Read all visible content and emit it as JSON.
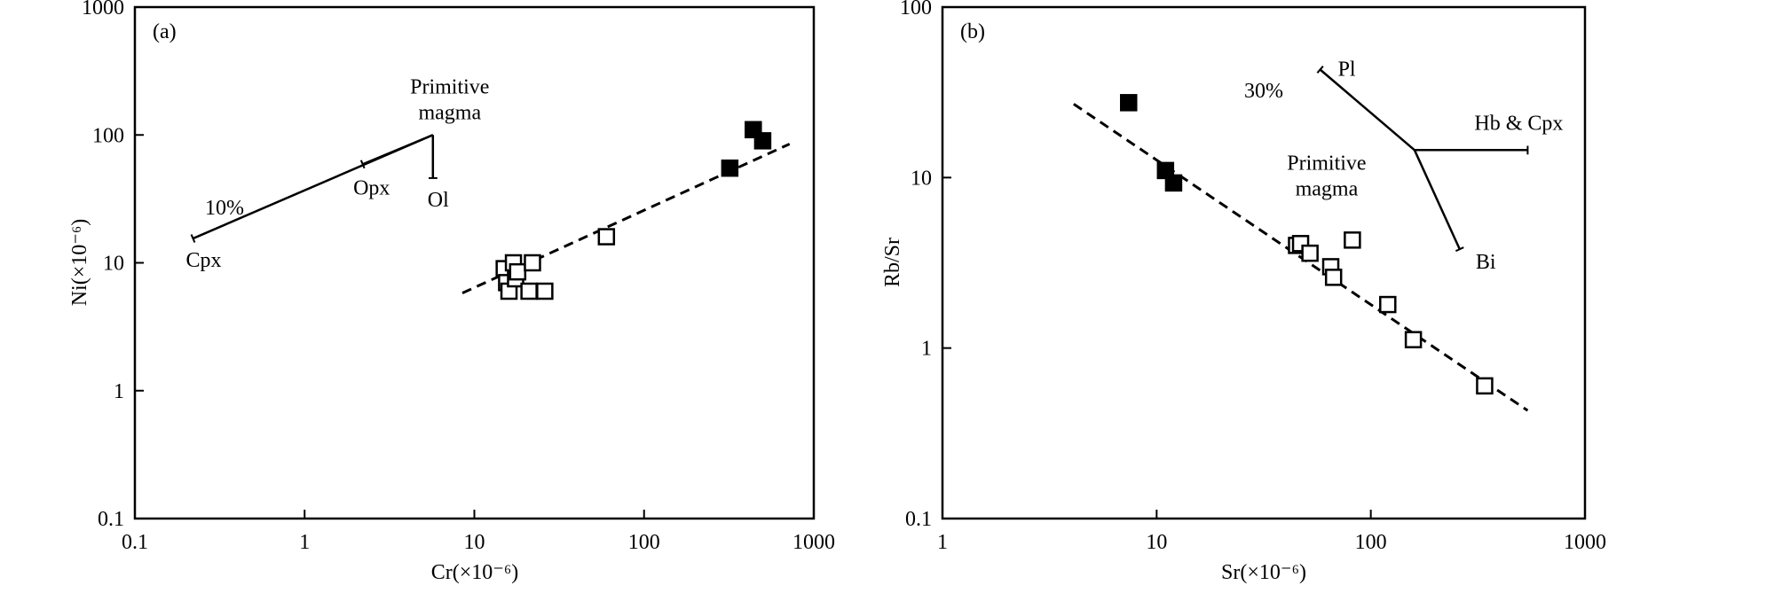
{
  "chart_data": [
    {
      "panel_label": "(a)",
      "type": "scatter",
      "xlabel": "Cr(×10⁻⁶)",
      "ylabel": "Ni(×10⁻⁶)",
      "x_scale": "log",
      "y_scale": "log",
      "xlim": [
        0.1,
        1000
      ],
      "ylim": [
        0.1,
        1000
      ],
      "x_tick_labels": [
        "0.1",
        "1",
        "10",
        "100",
        "1000"
      ],
      "y_tick_labels": [
        "0.1",
        "1",
        "10",
        "100",
        "1000"
      ],
      "series": [
        {
          "marker": "filled-square",
          "x": [
            320,
            440,
            500
          ],
          "y": [
            55,
            110,
            90
          ]
        },
        {
          "marker": "open-square",
          "x": [
            15,
            15.5,
            16,
            17,
            17.5,
            18,
            21,
            22,
            26,
            60
          ],
          "y": [
            9,
            7,
            6,
            10,
            7.5,
            8.5,
            6,
            10,
            6,
            16
          ]
        }
      ],
      "trend_line": {
        "style": "dashed",
        "x": [
          8.5,
          720
        ],
        "y": [
          5.8,
          85
        ]
      },
      "vectors": {
        "origin": {
          "x": 5.7,
          "y": 100
        },
        "origin_label": [
          "Primitive",
          "magma"
        ],
        "arrows": [
          {
            "label": "Cpx",
            "x": 0.22,
            "y": 15.5
          },
          {
            "label": "Opx",
            "x": 2.2,
            "y": 59
          },
          {
            "label": "Ol",
            "x": 5.7,
            "y": 46
          }
        ],
        "percent_label": "10%"
      }
    },
    {
      "panel_label": "(b)",
      "type": "scatter",
      "xlabel": "Sr(×10⁻⁶)",
      "ylabel": "Rb/Sr",
      "x_scale": "log",
      "y_scale": "log",
      "xlim": [
        1,
        1000
      ],
      "ylim": [
        0.1,
        100
      ],
      "x_tick_labels": [
        "1",
        "10",
        "100",
        "1000"
      ],
      "y_tick_labels": [
        "0.1",
        "1",
        "10",
        "100"
      ],
      "series": [
        {
          "marker": "filled-square",
          "x": [
            7.4,
            11,
            12
          ],
          "y": [
            27.5,
            11,
            9.3
          ]
        },
        {
          "marker": "open-square",
          "x": [
            45,
            47,
            52,
            65,
            67,
            82,
            120,
            158,
            340
          ],
          "y": [
            4.0,
            4.1,
            3.6,
            3.0,
            2.6,
            4.3,
            1.8,
            1.12,
            0.6
          ]
        }
      ],
      "trend_line": {
        "style": "dashed",
        "x": [
          4.1,
          540
        ],
        "y": [
          27,
          0.43
        ]
      },
      "vectors": {
        "origin": {
          "x": 160,
          "y": 14.5
        },
        "origin_label": [
          "Primitive",
          "magma"
        ],
        "arrows": [
          {
            "label": "Pl",
            "x": 58,
            "y": 43
          },
          {
            "label": "Hb & Cpx",
            "x": 540,
            "y": 14.5
          },
          {
            "label": "Bi",
            "x": 260,
            "y": 3.8
          }
        ],
        "percent_label": "30%"
      }
    }
  ]
}
